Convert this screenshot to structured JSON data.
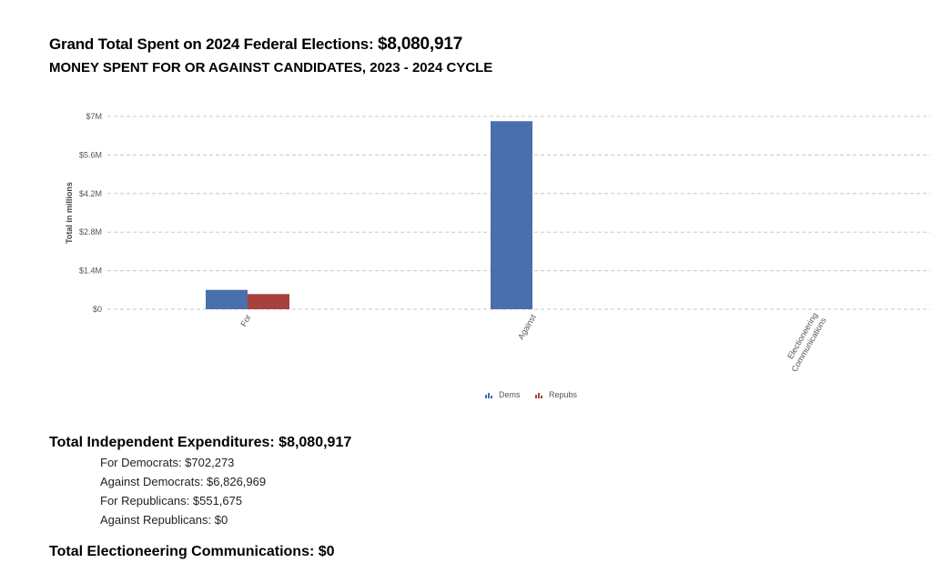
{
  "header": {
    "grand_total_label": "Grand Total Spent on 2024 Federal Elections:",
    "grand_total_value": "$8,080,917",
    "subtitle": "MONEY SPENT FOR OR AGAINST CANDIDATES, 2023 - 2024 CYCLE"
  },
  "chart_data": {
    "type": "bar",
    "categories": [
      "For",
      "Against",
      "Electioneering Communications"
    ],
    "series": [
      {
        "name": "Dems",
        "color": "#4a6fad",
        "values": [
          702273,
          6826969,
          0
        ]
      },
      {
        "name": "Repubs",
        "color": "#a8413d",
        "values": [
          551675,
          0,
          0
        ]
      }
    ],
    "ylabel": "Total in millions",
    "ylim": [
      0,
      7000000
    ],
    "yticks": [
      0,
      1400000,
      2800000,
      4200000,
      5600000,
      7000000
    ],
    "ytick_labels": [
      "$0",
      "$1.4M",
      "$2.8M",
      "$4.2M",
      "$5.6M",
      "$7M"
    ],
    "grid": true,
    "legend": "bottom-center"
  },
  "summary": {
    "ie_label": "Total Independent Expenditures: $8,080,917",
    "items": [
      "For Democrats: $702,273",
      "Against Democrats: $6,826,969",
      "For Republicans: $551,675",
      "Against Republicans: $0"
    ],
    "ec_label": "Total Electioneering Communications: $0"
  }
}
